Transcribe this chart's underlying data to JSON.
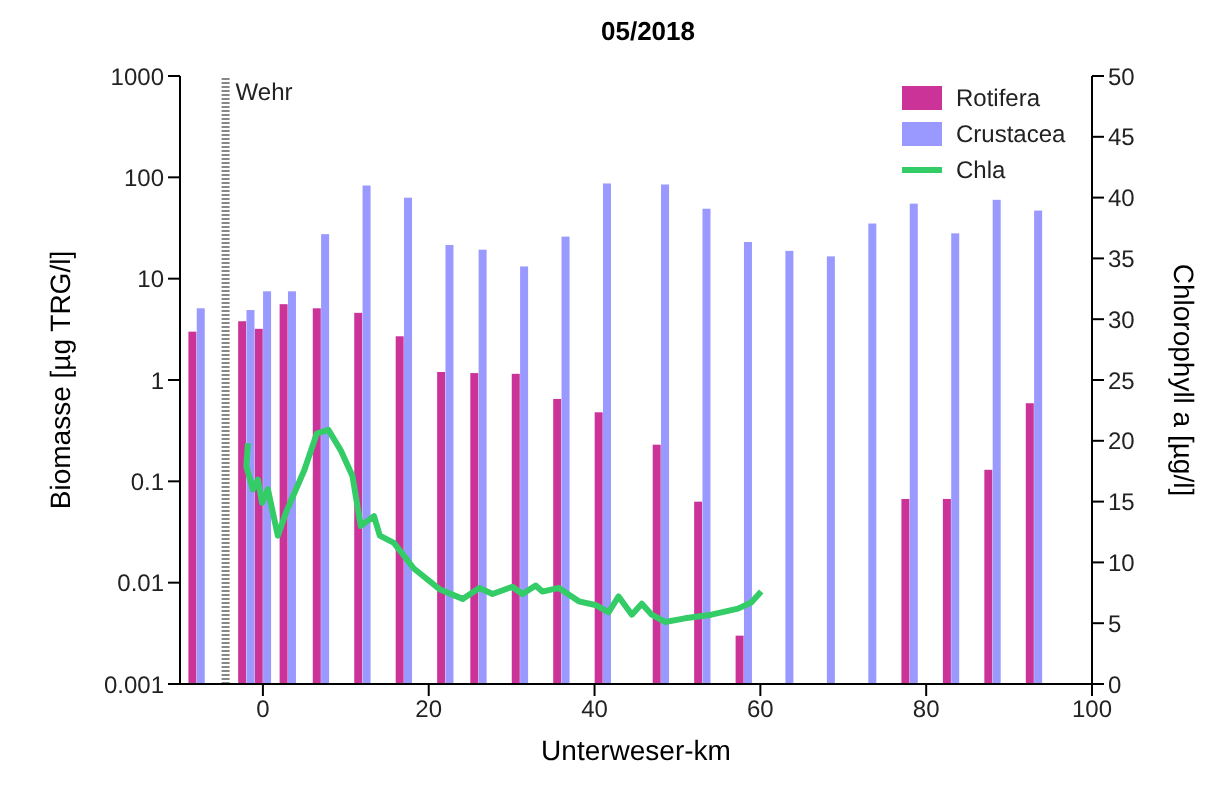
{
  "chart_data": {
    "type": "bar",
    "title": "05/2018",
    "xlabel": "Unterweser-km",
    "ylabel": "Biomasse [µg TRG/l]",
    "y2label": "Chlorophyll a [µg/l]",
    "x": [
      -8,
      -2,
      0,
      3,
      7,
      12,
      17,
      22,
      26,
      31,
      36,
      41,
      48,
      53,
      58,
      63,
      68,
      73,
      78,
      83,
      88,
      93
    ],
    "series": [
      {
        "name": "Rotifera",
        "color": "#cc3399",
        "values": [
          3.0,
          3.8,
          3.2,
          5.6,
          5.1,
          4.6,
          2.7,
          1.2,
          1.17,
          1.15,
          0.65,
          0.48,
          0.23,
          0.063,
          0.003,
          null,
          null,
          null,
          0.067,
          0.067,
          0.13,
          0.59
        ]
      },
      {
        "name": "Crustacea",
        "color": "#9999ff",
        "values": [
          5.1,
          4.9,
          7.5,
          7.5,
          27.5,
          83,
          63,
          21.5,
          19.3,
          13.2,
          26,
          87,
          85,
          49,
          23,
          18.8,
          16.6,
          35,
          55,
          28,
          60,
          47
        ]
      },
      {
        "name": "Chla",
        "type": "line",
        "axis": "y2",
        "color": "#33cc66",
        "x": [
          -1.8,
          -2,
          -1.2,
          -0.6,
          -0.1,
          0.6,
          1.8,
          2.9,
          5.0,
          6.5,
          7.9,
          9.4,
          10.8,
          11.8,
          13.4,
          14.1,
          15.8,
          18.2,
          21.3,
          24.1,
          26.1,
          27.7,
          30.1,
          31.3,
          32.9,
          33.7,
          35.7,
          38.1,
          40.1,
          41.7,
          42.9,
          44.5,
          45.7,
          46.9,
          48.5,
          50.9,
          54.1,
          57.3,
          58.9,
          60.1
        ],
        "values": [
          19.8,
          17.9,
          16.0,
          16.8,
          14.9,
          16.0,
          12.2,
          14.3,
          17.6,
          20.6,
          20.9,
          19.2,
          17.1,
          13.0,
          13.8,
          12.2,
          11.6,
          9.5,
          7.8,
          7.0,
          7.9,
          7.4,
          8.0,
          7.4,
          8.1,
          7.6,
          7.9,
          6.8,
          6.5,
          5.9,
          7.2,
          5.7,
          6.6,
          5.7,
          5.1,
          5.4,
          5.7,
          6.2,
          6.7,
          7.6
        ]
      }
    ],
    "xlim": [
      -10,
      100
    ],
    "xticks": [
      0,
      20,
      40,
      60,
      80,
      100
    ],
    "log": "y",
    "ylim": [
      0.001,
      1000
    ],
    "yticks": [
      0.001,
      0.01,
      0.1,
      1,
      10,
      100,
      1000
    ],
    "y2lim": [
      0,
      50
    ],
    "y2ticks": [
      0,
      5,
      10,
      15,
      20,
      25,
      30,
      35,
      40,
      45,
      50
    ],
    "ref_lines": [
      {
        "axis": "x",
        "value": -4.5,
        "label": "Wehr",
        "color": "#888888",
        "line_style": "dotted"
      }
    ],
    "grid": false,
    "legend": "top right",
    "marker": "none",
    "line_style": "solid"
  }
}
